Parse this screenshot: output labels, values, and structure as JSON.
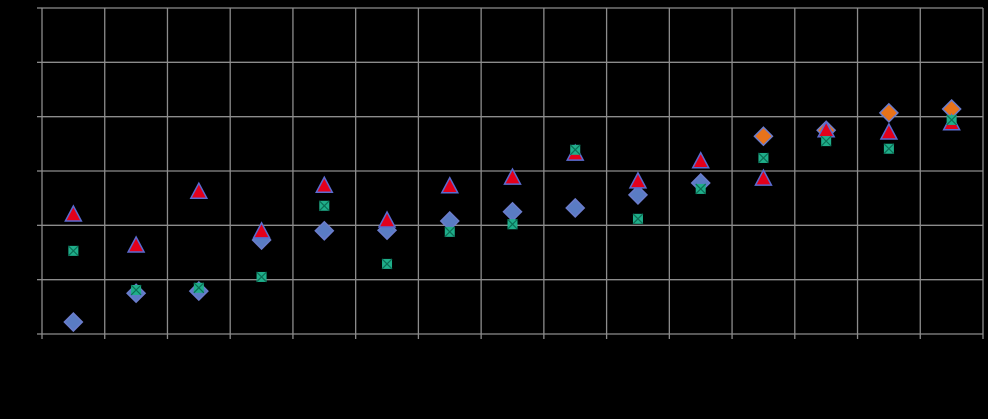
{
  "chart_data": {
    "type": "scatter",
    "categories": [
      null,
      null,
      null,
      null,
      null,
      null,
      null,
      null,
      null,
      null,
      null,
      null,
      null,
      null,
      null
    ],
    "ylim": [
      0,
      6
    ],
    "yticks": [
      0,
      1,
      2,
      3,
      4,
      5,
      6
    ],
    "grid": true,
    "series": [
      {
        "color": "#5a7cc4",
        "marker": "diamond",
        "values": [
          0.22,
          0.75,
          0.79,
          1.73,
          1.9,
          1.91,
          2.08,
          2.25,
          2.32,
          2.56,
          2.78,
          null,
          null,
          null,
          null
        ]
      },
      {
        "color": "#e8731a",
        "marker": "diamond",
        "values": [
          null,
          null,
          null,
          null,
          null,
          null,
          null,
          null,
          null,
          null,
          null,
          3.64,
          3.75,
          4.07,
          4.14
        ]
      },
      {
        "color": "#e3001b",
        "marker": "triangle",
        "values": [
          2.19,
          1.62,
          2.61,
          1.88,
          2.72,
          2.08,
          2.71,
          2.87,
          3.31,
          2.8,
          3.17,
          2.85,
          3.74,
          3.7,
          3.87
        ]
      },
      {
        "color": "#1fae8a",
        "marker": "xsquare",
        "values": [
          1.53,
          0.81,
          0.85,
          1.05,
          2.36,
          1.29,
          1.88,
          2.02,
          3.39,
          2.12,
          2.67,
          3.24,
          3.55,
          3.41,
          3.94
        ]
      }
    ]
  }
}
